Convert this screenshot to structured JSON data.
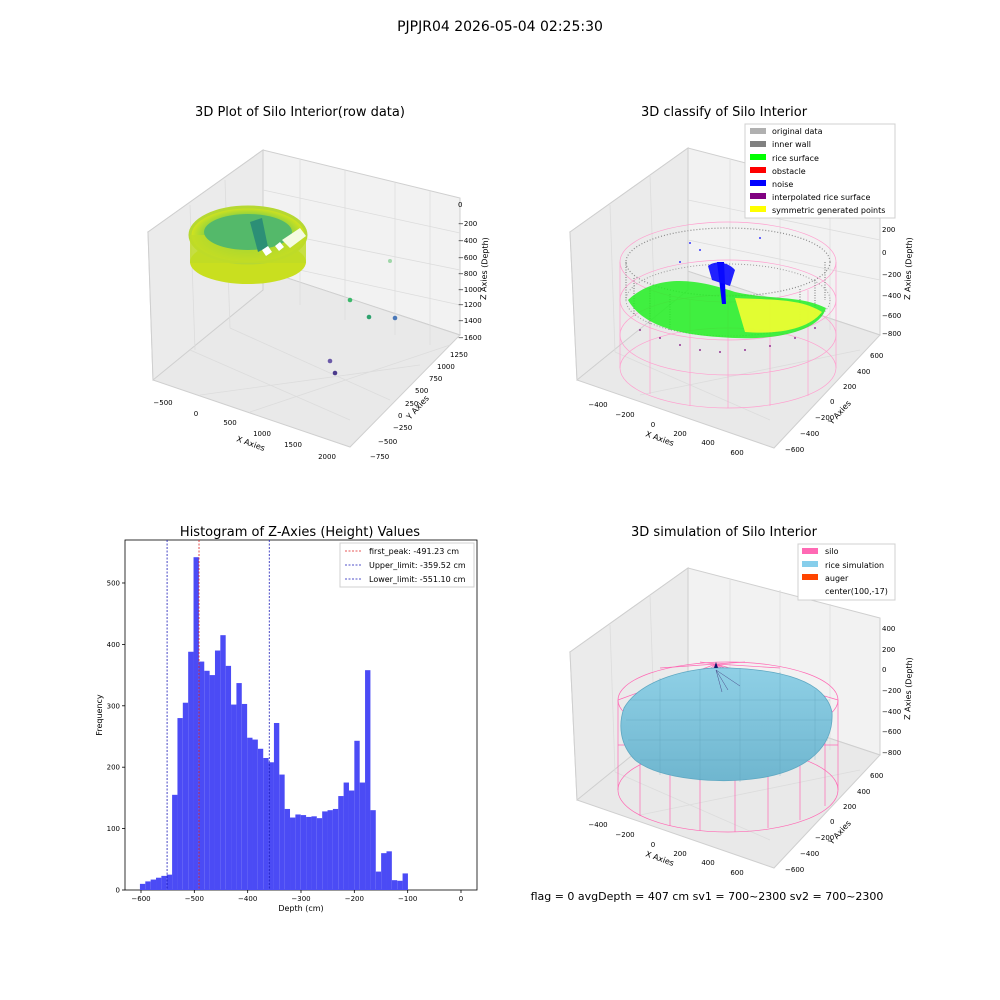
{
  "suptitle": "PJPJR04 2026-05-04 02:25:30",
  "footer_text": "flag = 0     avgDepth = 407 cm  sv1 = 700~2300  sv2 = 700~2300",
  "colors": {
    "hist_bar": "#4b4bf5",
    "first_peak": "#e02020",
    "limits": "#1a1ab8",
    "silo": "#ff69b4",
    "rice_sim": "#87ceeb",
    "auger": "#ff4500",
    "original": "#b0b0b0",
    "inner_wall": "#808080",
    "rice_surface": "#00ff00",
    "obstacle": "#ff0000",
    "noise": "#0000ff",
    "interp_rice": "#800080",
    "symmetric": "#ffff00"
  },
  "chart_data": [
    {
      "type": "scatter",
      "title": "3D Plot of Silo Interior(row data)",
      "xlabel": "X Axies",
      "ylabel": "Y Axies",
      "zlabel": "Z Axies (Depth)",
      "x_ticks": [
        "−500",
        "0",
        "500",
        "1000",
        "1500",
        "2000"
      ],
      "y_ticks": [
        "−750",
        "−500",
        "−250",
        "0",
        "250",
        "500",
        "750",
        "1000",
        "1250"
      ],
      "z_ticks": [
        "0",
        "−200",
        "−400",
        "−600",
        "−800",
        "−1000",
        "−1200",
        "−1400",
        "−1600"
      ],
      "outlier_points": [
        {
          "x": 1700,
          "y": 1000,
          "z": -700
        },
        {
          "x": 1300,
          "y": 700,
          "z": -1150
        },
        {
          "x": 1300,
          "y": 400,
          "z": -1300
        },
        {
          "x": 1800,
          "y": 200,
          "z": -1350
        },
        {
          "x": 1400,
          "y": -500,
          "z": -1500
        },
        {
          "x": 1450,
          "y": -650,
          "z": -1600
        }
      ]
    },
    {
      "type": "scatter",
      "title": "3D classify of Silo Interior",
      "xlabel": "X Axies",
      "ylabel": "Y Axies",
      "zlabel": "Z Axies (Depth)",
      "x_ticks": [
        "−400",
        "−200",
        "0",
        "200",
        "400",
        "600"
      ],
      "y_ticks": [
        "−600",
        "−400",
        "−200",
        "0",
        "200",
        "400",
        "600"
      ],
      "z_ticks": [
        "200",
        "0",
        "−200",
        "−400",
        "−600",
        "−800"
      ],
      "legend": [
        "original data",
        "inner wall",
        "rice surface",
        "obstacle",
        "noise",
        "interpolated rice surface",
        "symmetric generated points"
      ]
    },
    {
      "type": "bar",
      "title": "Histogram of Z-Axies (Height) Values",
      "xlabel": "Depth (cm)",
      "ylabel": "Frequency",
      "xlim": [
        -630,
        30
      ],
      "ylim": [
        0,
        570
      ],
      "x_ticks": [
        -600,
        -500,
        -400,
        -300,
        -200,
        -100,
        0
      ],
      "y_ticks": [
        0,
        100,
        200,
        300,
        400,
        500
      ],
      "x_tick_labels": [
        "−600",
        "−500",
        "−400",
        "−300",
        "−200",
        "−100",
        "0"
      ],
      "bin_start": -602,
      "bin_width": 10.05,
      "values": [
        10,
        14,
        17,
        20,
        23,
        25,
        155,
        280,
        305,
        388,
        542,
        372,
        357,
        350,
        390,
        415,
        365,
        302,
        337,
        303,
        248,
        245,
        230,
        215,
        208,
        272,
        188,
        132,
        118,
        123,
        122,
        119,
        120,
        117,
        128,
        130,
        132,
        153,
        175,
        162,
        243,
        175,
        358,
        130,
        30,
        60,
        63,
        16,
        15,
        27
      ],
      "vlines": [
        {
          "x": -491.23,
          "label": "first_peak: -491.23 cm",
          "style": "first_peak"
        },
        {
          "x": -359.52,
          "label": "Upper_limit: -359.52 cm",
          "style": "limits"
        },
        {
          "x": -551.1,
          "label": "Lower_limit: -551.10 cm",
          "style": "limits"
        }
      ]
    },
    {
      "type": "surface",
      "title": "3D simulation of Silo Interior",
      "xlabel": "X Axies",
      "ylabel": "Y Axies",
      "zlabel": "Z Axies (Depth)",
      "x_ticks": [
        "−400",
        "−200",
        "0",
        "200",
        "400",
        "600"
      ],
      "y_ticks": [
        "−600",
        "−400",
        "−200",
        "0",
        "200",
        "400",
        "600"
      ],
      "z_ticks": [
        "400",
        "200",
        "0",
        "−200",
        "−400",
        "−600",
        "−800"
      ],
      "legend": [
        "silo",
        "rice simulation",
        "auger",
        "center(100,-17)"
      ]
    }
  ]
}
